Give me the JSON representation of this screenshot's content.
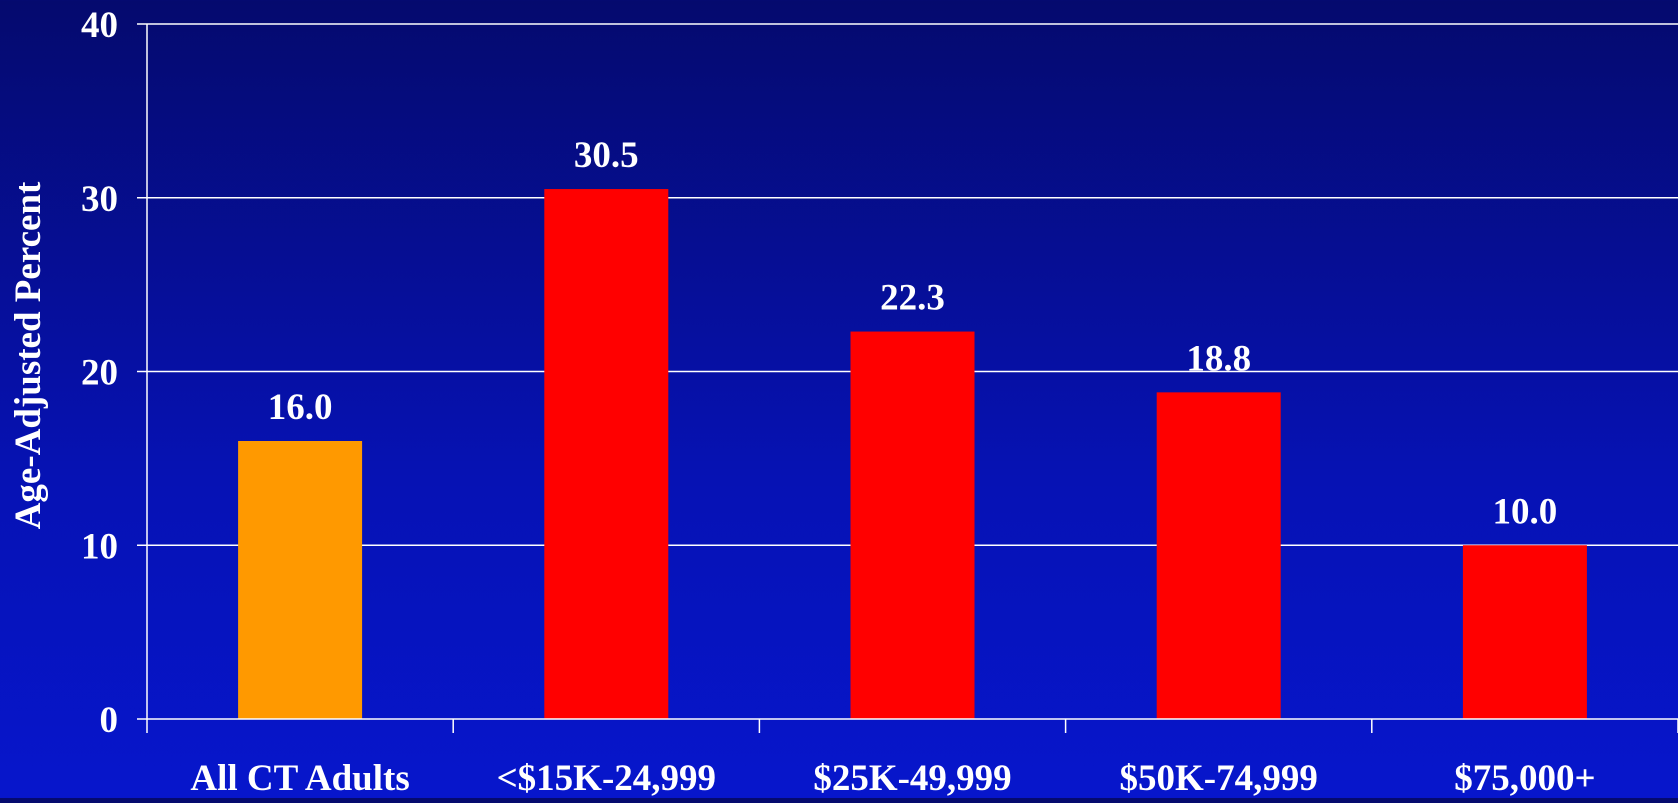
{
  "chart_data": {
    "type": "bar",
    "title": "",
    "xlabel": "",
    "ylabel": "Age-Adjusted Percent",
    "categories": [
      "All CT Adults",
      "<$15K-24,999",
      "$25K-49,999",
      "$50K-74,999",
      "$75,000+"
    ],
    "values": [
      16.0,
      30.5,
      22.3,
      18.8,
      10.0
    ],
    "value_labels": [
      "16.0",
      "30.5",
      "22.3",
      "18.8",
      "10.0"
    ],
    "bar_colors": [
      "#ff9900",
      "#ff0000",
      "#ff0000",
      "#ff0000",
      "#ff0000"
    ],
    "ylim": [
      0,
      40
    ],
    "yticks": [
      0,
      10,
      20,
      30,
      40
    ],
    "ytick_labels": [
      "0",
      "10",
      "20",
      "30",
      "40"
    ],
    "grid": true,
    "legend": "none",
    "colors": {
      "background_top": "#050a6e",
      "background_bottom": "#0716cc",
      "gridline": "#ffffff",
      "text": "#ffffff"
    }
  }
}
